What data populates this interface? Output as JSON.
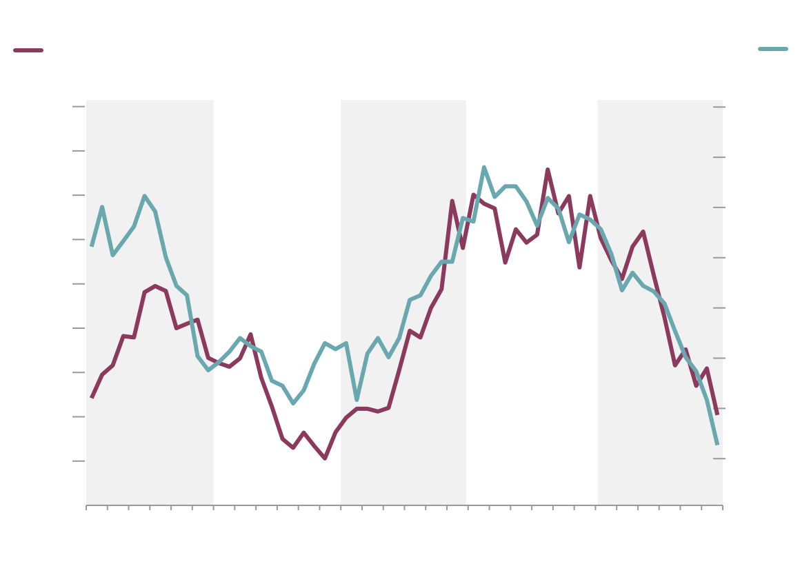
{
  "chart_data": {
    "type": "line",
    "x": [
      0.25,
      0.75,
      1.25,
      1.75,
      2.25,
      2.75,
      3.25,
      3.75,
      4.25,
      4.75,
      5.25,
      5.75,
      6.25,
      6.75,
      7.25,
      7.75,
      8.25,
      8.75,
      9.25,
      9.75,
      10.25,
      10.75,
      11.25,
      11.75,
      12.25,
      12.75,
      13.25,
      13.75,
      14.25,
      14.75,
      15.25,
      15.75,
      16.25,
      16.75,
      17.25,
      17.75,
      18.25,
      18.75,
      19.25,
      19.75,
      20.25,
      20.75,
      21.25,
      21.75,
      22.25,
      22.75,
      23.25,
      23.75,
      24.25,
      24.75,
      25.25,
      25.75,
      26.25,
      26.75,
      27.25,
      27.75,
      28.25,
      28.75,
      29.25,
      29.75
    ],
    "xlim": [
      0,
      30
    ],
    "xticks": [
      0,
      1,
      2,
      3,
      4,
      5,
      6,
      7,
      8,
      9,
      10,
      11,
      12,
      13,
      14,
      15,
      16,
      17,
      18,
      19,
      20,
      21,
      22,
      23,
      24,
      25,
      26,
      27,
      28,
      29,
      30
    ],
    "ylim": [
      -1,
      8.15
    ],
    "yticks": [
      0,
      1,
      2,
      3,
      4,
      5,
      6,
      7,
      8
    ],
    "y2lim": [
      -0.93,
      7.14
    ],
    "y2ticks": [
      0,
      1,
      2,
      3,
      4,
      5,
      6,
      7
    ],
    "shaded_ranges": [
      [
        0,
        6
      ],
      [
        12,
        17.9
      ],
      [
        24.1,
        30
      ]
    ],
    "series": [
      {
        "color": "#8b3a5e",
        "values": [
          1.42,
          1.95,
          2.16,
          2.82,
          2.79,
          3.81,
          3.95,
          3.84,
          3.0,
          3.1,
          3.19,
          2.33,
          2.21,
          2.13,
          2.32,
          2.86,
          1.88,
          1.23,
          0.5,
          0.3,
          0.64,
          0.34,
          0.06,
          0.65,
          0.98,
          1.18,
          1.18,
          1.12,
          1.2,
          2.05,
          2.94,
          2.79,
          3.46,
          3.88,
          5.87,
          4.81,
          6.01,
          5.81,
          5.7,
          4.48,
          5.23,
          4.93,
          5.11,
          6.58,
          5.59,
          5.98,
          4.37,
          5.98,
          5.03,
          4.53,
          4.11,
          4.84,
          5.18,
          4.19,
          3.25,
          2.16,
          2.52,
          1.7,
          2.09,
          1.04
        ]
      },
      {
        "color": "#6aa8b0",
        "axis": "y2",
        "values": [
          4.22,
          5.01,
          4.05,
          4.33,
          4.62,
          5.23,
          4.92,
          4.01,
          3.44,
          3.25,
          2.04,
          1.76,
          1.92,
          2.13,
          2.4,
          2.24,
          2.13,
          1.55,
          1.45,
          1.1,
          1.36,
          1.89,
          2.3,
          2.18,
          2.3,
          1.17,
          2.09,
          2.4,
          2.02,
          2.4,
          3.16,
          3.25,
          3.64,
          3.92,
          3.92,
          4.79,
          4.72,
          5.8,
          5.21,
          5.42,
          5.42,
          5.12,
          4.64,
          5.19,
          4.98,
          4.31,
          4.86,
          4.76,
          4.57,
          4.07,
          3.35,
          3.7,
          3.44,
          3.33,
          3.09,
          2.54,
          2.02,
          1.74,
          1.17,
          0.27
        ]
      }
    ]
  }
}
